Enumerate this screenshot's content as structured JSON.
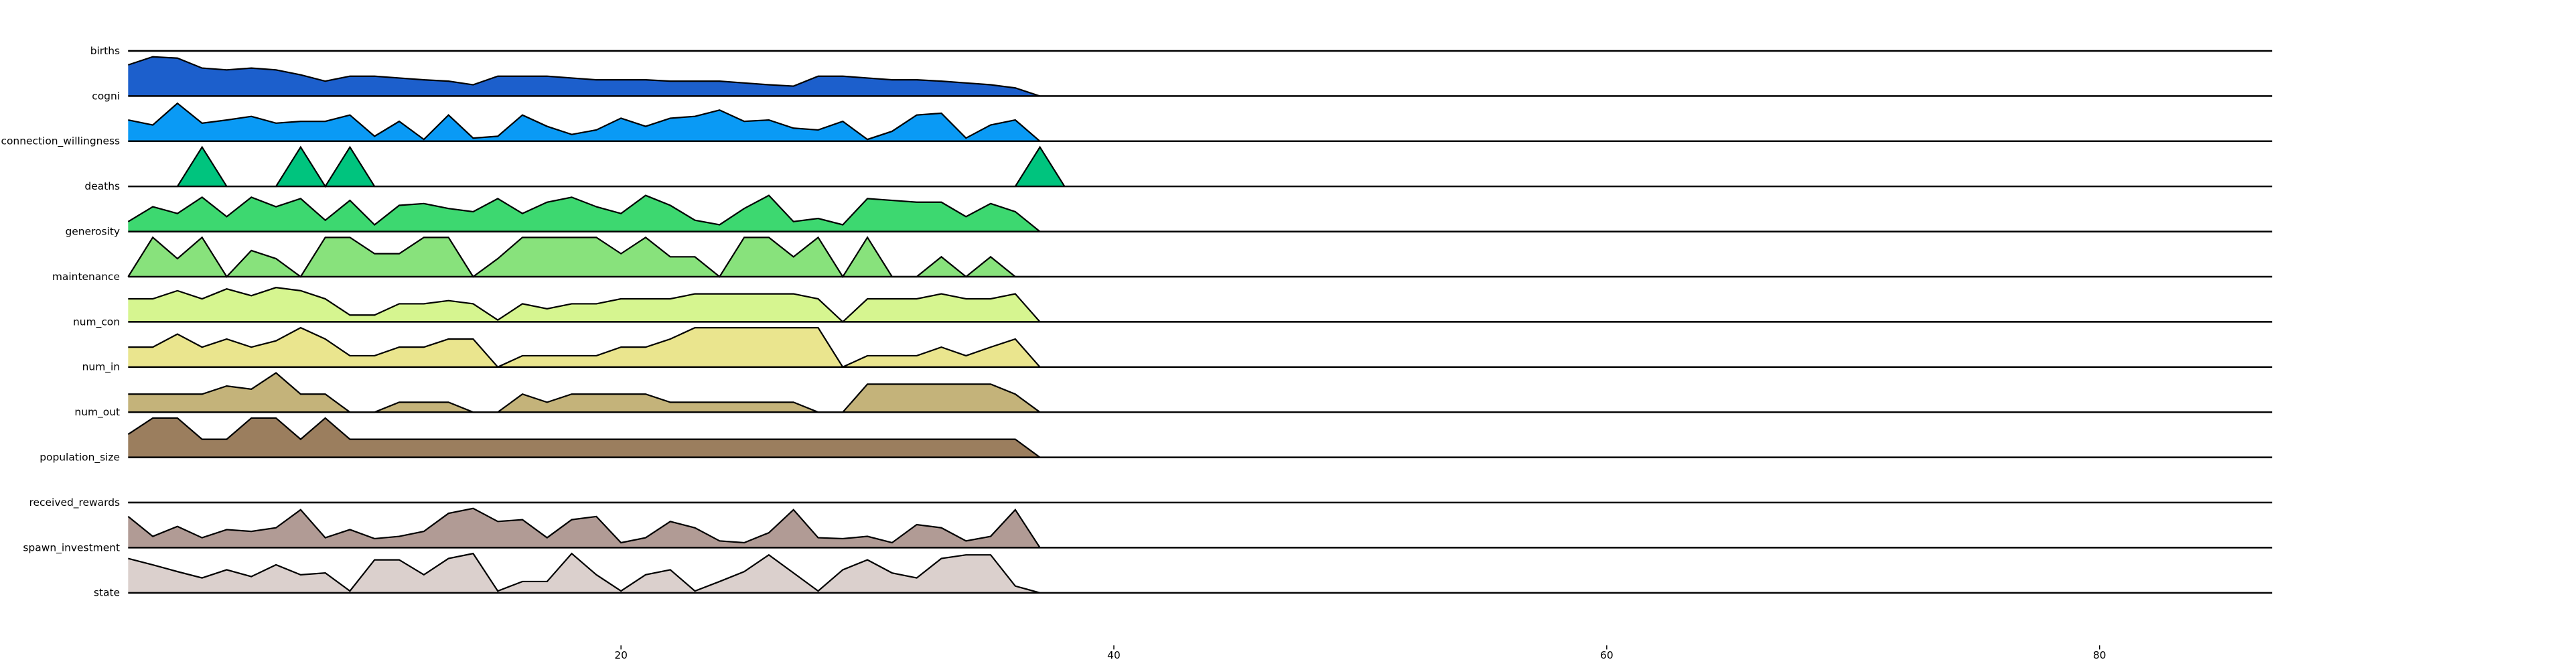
{
  "chart_data": {
    "type": "ridgeline",
    "x": [
      0,
      1,
      2,
      3,
      4,
      5,
      6,
      7,
      8,
      9,
      10,
      11,
      12,
      13,
      14,
      15,
      16,
      17,
      18,
      19,
      20,
      21,
      22,
      23,
      24,
      25,
      26,
      27,
      28,
      29,
      30,
      31,
      32,
      33,
      34,
      35,
      36,
      37,
      38
    ],
    "xlim": [
      0,
      87
    ],
    "xticks": [
      20,
      40,
      60,
      80
    ],
    "ylim": [
      0,
      1
    ],
    "series": [
      {
        "name": "births",
        "color": "#333399",
        "values": [
          0,
          0,
          0,
          0,
          0,
          0,
          0,
          0,
          0,
          0,
          0,
          0,
          0,
          0,
          0,
          0,
          0,
          0,
          0,
          0,
          0,
          0,
          0,
          0,
          0,
          0,
          0,
          0,
          0,
          0,
          0,
          0,
          0,
          0,
          0,
          0,
          0,
          0,
          null
        ]
      },
      {
        "name": "cogni",
        "color": "#1c5fcc",
        "values": [
          0.69,
          0.87,
          0.84,
          0.62,
          0.58,
          0.62,
          0.58,
          0.47,
          0.33,
          0.44,
          0.44,
          0.4,
          0.36,
          0.33,
          0.25,
          0.44,
          0.44,
          0.44,
          0.4,
          0.36,
          0.36,
          0.36,
          0.33,
          0.33,
          0.33,
          0.29,
          0.25,
          0.22,
          0.44,
          0.44,
          0.4,
          0.36,
          0.36,
          0.33,
          0.29,
          0.25,
          0.18,
          0,
          null
        ]
      },
      {
        "name": "connection_willingness",
        "color": "#0a9af5",
        "values": [
          0.47,
          0.36,
          0.84,
          0.4,
          0.47,
          0.55,
          0.4,
          0.44,
          0.44,
          0.58,
          0.11,
          0.44,
          0.04,
          0.58,
          0.07,
          0.11,
          0.58,
          0.33,
          0.15,
          0.25,
          0.51,
          0.33,
          0.51,
          0.55,
          0.69,
          0.44,
          0.47,
          0.29,
          0.25,
          0.44,
          0.04,
          0.22,
          0.58,
          0.62,
          0.07,
          0.36,
          0.47,
          0,
          null
        ]
      },
      {
        "name": "deaths",
        "color": "#00c47e",
        "values": [
          0,
          0,
          0,
          0.87,
          0,
          0,
          0,
          0.87,
          0,
          0.87,
          0,
          0,
          0,
          0,
          0,
          0,
          0,
          0,
          0,
          0,
          0,
          0,
          0,
          0,
          0,
          0,
          0,
          0,
          0,
          0,
          0,
          0,
          0,
          0,
          0,
          0,
          0,
          0.87,
          0
        ]
      },
      {
        "name": "generosity",
        "color": "#3dd870",
        "values": [
          0.22,
          0.55,
          0.4,
          0.76,
          0.33,
          0.76,
          0.55,
          0.73,
          0.25,
          0.69,
          0.15,
          0.58,
          0.62,
          0.51,
          0.44,
          0.73,
          0.4,
          0.65,
          0.76,
          0.55,
          0.4,
          0.8,
          0.58,
          0.25,
          0.15,
          0.51,
          0.8,
          0.22,
          0.29,
          0.15,
          0.73,
          0.69,
          0.65,
          0.65,
          0.33,
          0.62,
          0.44,
          0,
          null
        ]
      },
      {
        "name": "maintenance",
        "color": "#88e27c",
        "values": [
          0,
          0.87,
          0.4,
          0.87,
          0,
          0.58,
          0.4,
          0,
          0.87,
          0.87,
          0.51,
          0.51,
          0.87,
          0.87,
          0,
          0.4,
          0.87,
          0.87,
          0.87,
          0.87,
          0.51,
          0.87,
          0.44,
          0.44,
          0,
          0.87,
          0.87,
          0.44,
          0.87,
          0,
          0.87,
          0,
          0,
          0.44,
          0,
          0.44,
          0,
          0,
          null
        ]
      },
      {
        "name": "num_con",
        "color": "#d6f590",
        "values": [
          0.51,
          0.51,
          0.69,
          0.51,
          0.73,
          0.58,
          0.76,
          0.69,
          0.51,
          0.15,
          0.15,
          0.4,
          0.4,
          0.47,
          0.4,
          0.04,
          0.4,
          0.29,
          0.4,
          0.4,
          0.51,
          0.51,
          0.51,
          0.62,
          0.62,
          0.62,
          0.62,
          0.62,
          0.51,
          0,
          0.51,
          0.51,
          0.51,
          0.62,
          0.51,
          0.51,
          0.62,
          0,
          null
        ]
      },
      {
        "name": "num_in",
        "color": "#eae58e",
        "values": [
          0.44,
          0.44,
          0.73,
          0.44,
          0.62,
          0.44,
          0.58,
          0.87,
          0.62,
          0.25,
          0.25,
          0.44,
          0.44,
          0.62,
          0.62,
          0,
          0.25,
          0.25,
          0.25,
          0.25,
          0.44,
          0.44,
          0.62,
          0.87,
          0.87,
          0.87,
          0.87,
          0.87,
          0.87,
          0,
          0.25,
          0.25,
          0.25,
          0.44,
          0.25,
          0.44,
          0.62,
          0,
          null
        ]
      },
      {
        "name": "num_out",
        "color": "#c4b37a",
        "values": [
          0.4,
          0.4,
          0.4,
          0.4,
          0.58,
          0.51,
          0.87,
          0.4,
          0.4,
          0,
          0,
          0.22,
          0.22,
          0.22,
          0,
          0,
          0.4,
          0.22,
          0.4,
          0.4,
          0.4,
          0.4,
          0.22,
          0.22,
          0.22,
          0.22,
          0.22,
          0.22,
          0,
          0,
          0.62,
          0.62,
          0.62,
          0.62,
          0.62,
          0.62,
          0.4,
          0,
          null
        ]
      },
      {
        "name": "population_size",
        "color": "#9b7e5e",
        "values": [
          0.51,
          0.87,
          0.87,
          0.4,
          0.4,
          0.87,
          0.87,
          0.4,
          0.87,
          0.4,
          0.4,
          0.4,
          0.4,
          0.4,
          0.4,
          0.4,
          0.4,
          0.4,
          0.4,
          0.4,
          0.4,
          0.4,
          0.4,
          0.4,
          0.4,
          0.4,
          0.4,
          0.4,
          0.4,
          0.4,
          0.4,
          0.4,
          0.4,
          0.4,
          0.4,
          0.4,
          0.4,
          0,
          null
        ]
      },
      {
        "name": "received_rewards",
        "color": "#a58a80",
        "values": [
          0,
          0,
          0,
          0,
          0,
          0,
          0,
          0,
          0,
          0,
          0,
          0,
          0,
          0,
          0,
          0,
          0,
          0,
          0,
          0,
          0,
          0,
          0,
          0,
          0,
          0,
          0,
          0,
          0,
          0,
          0,
          0,
          0,
          0,
          0,
          0,
          0,
          0,
          null
        ]
      },
      {
        "name": "spawn_investment",
        "color": "#b19b95",
        "values": [
          0.69,
          0.25,
          0.47,
          0.22,
          0.4,
          0.36,
          0.44,
          0.84,
          0.22,
          0.4,
          0.2,
          0.25,
          0.36,
          0.76,
          0.87,
          0.58,
          0.62,
          0.22,
          0.62,
          0.69,
          0.11,
          0.22,
          0.58,
          0.44,
          0.15,
          0.11,
          0.33,
          0.84,
          0.22,
          0.2,
          0.25,
          0.11,
          0.51,
          0.44,
          0.15,
          0.25,
          0.84,
          0,
          null
        ]
      },
      {
        "name": "state",
        "color": "#dbd0cd",
        "values": [
          0.76,
          0.62,
          0.47,
          0.33,
          0.51,
          0.36,
          0.62,
          0.4,
          0.44,
          0.04,
          0.73,
          0.73,
          0.4,
          0.76,
          0.87,
          0.04,
          0.25,
          0.25,
          0.87,
          0.4,
          0.04,
          0.4,
          0.51,
          0.04,
          0.25,
          0.47,
          0.84,
          0.44,
          0.04,
          0.51,
          0.73,
          0.44,
          0.33,
          0.76,
          0.84,
          0.84,
          0.15,
          0,
          null
        ]
      }
    ]
  }
}
